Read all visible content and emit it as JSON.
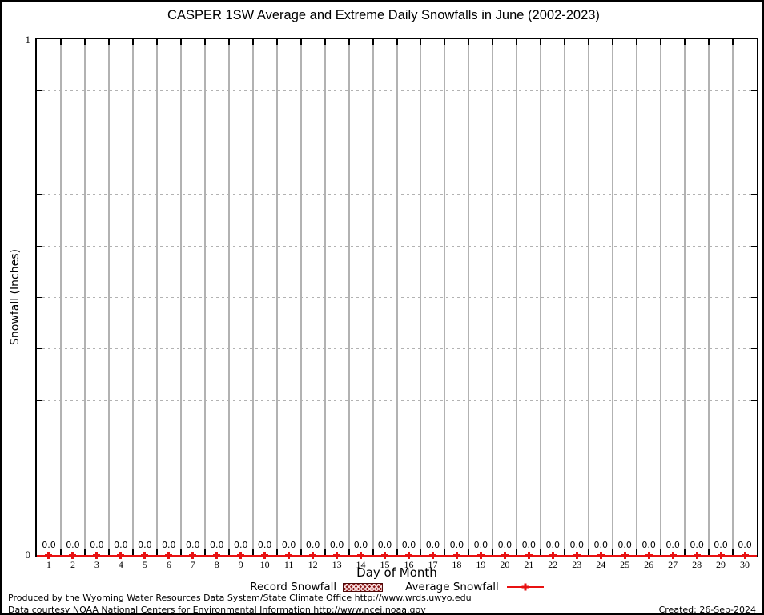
{
  "title": "CASPER 1SW Average and Extreme Daily Snowfalls in June (2002-2023)",
  "axes": {
    "ylabel": "Snowfall (Inches)",
    "xlabel": "Day of Month",
    "ymax_label": "1",
    "ymin_label": "0"
  },
  "legend": {
    "record": {
      "label": "Record Snowfall",
      "swatch": "hatched-box",
      "color": "#8b1717"
    },
    "average": {
      "label": "Average Snowfall",
      "swatch": "line-with-plus-marker",
      "color": "#e81111"
    }
  },
  "footer": {
    "line1": "Produced by the Wyoming Water Resources Data System/State Climate Office http://www.wrds.uwyo.edu",
    "line2": "Data courtesy NOAA National Centers for Environmental Information http://www.ncei.noaa.gov",
    "created": "Created: 26-Sep-2024"
  },
  "chart_data": {
    "type": "line",
    "title": "CASPER 1SW Average and Extreme Daily Snowfalls in June (2002-2023)",
    "xlabel": "Day of Month",
    "ylabel": "Snowfall (Inches)",
    "x": [
      1,
      2,
      3,
      4,
      5,
      6,
      7,
      8,
      9,
      10,
      11,
      12,
      13,
      14,
      15,
      16,
      17,
      18,
      19,
      20,
      21,
      22,
      23,
      24,
      25,
      26,
      27,
      28,
      29,
      30
    ],
    "xlim": [
      0.5,
      30.5
    ],
    "ylim": [
      0,
      1
    ],
    "ytick_labeled": [
      0,
      1
    ],
    "y_minor_step": 0.1,
    "grid": {
      "vertical": "solid-gray-at-day-boundaries",
      "horizontal": "dotted-gray-every-0.1"
    },
    "legend_position": "bottom-center",
    "series": [
      {
        "name": "Record Snowfall",
        "style": "boxes",
        "color": "#8b1717",
        "values": [
          0.0,
          0.0,
          0.0,
          0.0,
          0.0,
          0.0,
          0.0,
          0.0,
          0.0,
          0.0,
          0.0,
          0.0,
          0.0,
          0.0,
          0.0,
          0.0,
          0.0,
          0.0,
          0.0,
          0.0,
          0.0,
          0.0,
          0.0,
          0.0,
          0.0,
          0.0,
          0.0,
          0.0,
          0.0,
          0.0
        ]
      },
      {
        "name": "Average Snowfall",
        "style": "line+plus-marker",
        "color": "#e81111",
        "values": [
          0.0,
          0.0,
          0.0,
          0.0,
          0.0,
          0.0,
          0.0,
          0.0,
          0.0,
          0.0,
          0.0,
          0.0,
          0.0,
          0.0,
          0.0,
          0.0,
          0.0,
          0.0,
          0.0,
          0.0,
          0.0,
          0.0,
          0.0,
          0.0,
          0.0,
          0.0,
          0.0,
          0.0,
          0.0,
          0.0
        ]
      }
    ],
    "point_labels": [
      "0.0",
      "0.0",
      "0.0",
      "0.0",
      "0.0",
      "0.0",
      "0.0",
      "0.0",
      "0.0",
      "0.0",
      "0.0",
      "0.0",
      "0.0",
      "0.0",
      "0.0",
      "0.0",
      "0.0",
      "0.0",
      "0.0",
      "0.0",
      "0.0",
      "0.0",
      "0.0",
      "0.0",
      "0.0",
      "0.0",
      "0.0",
      "0.0",
      "0.0",
      "0.0"
    ]
  }
}
